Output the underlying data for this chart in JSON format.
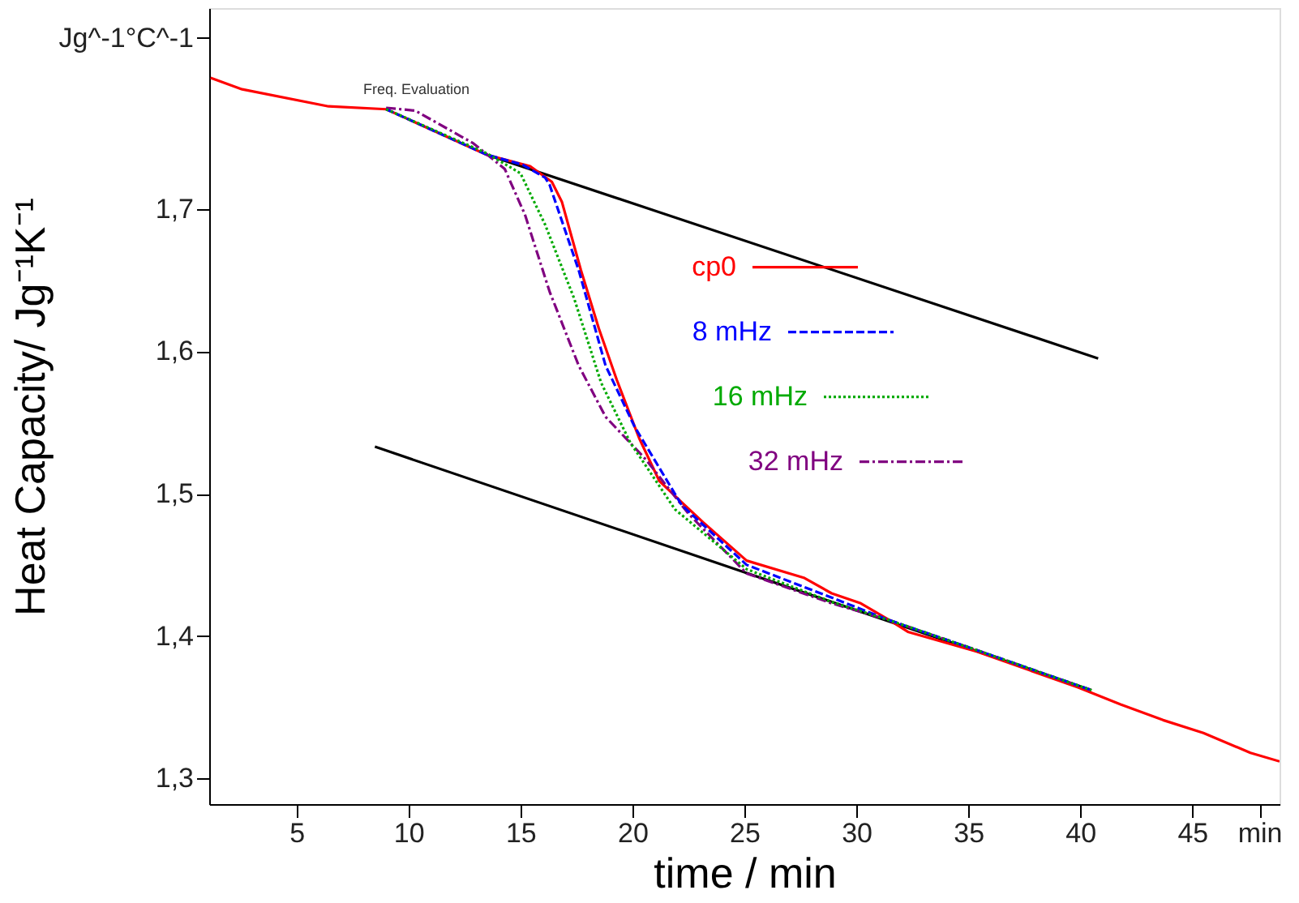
{
  "chart_data": {
    "type": "line",
    "xlabel": "time / min",
    "ylabel": "Heat Capacity/ Jg⁻¹K⁻¹",
    "xlim": [
      1.1,
      48.9
    ],
    "ylim": [
      1.282,
      1.841
    ],
    "xticks": [
      5,
      10,
      15,
      20,
      25,
      30,
      35,
      40,
      45,
      {
        "value": 48,
        "label": "min"
      }
    ],
    "yticks": [
      {
        "value": 1.3,
        "label": "1,3"
      },
      {
        "value": 1.4,
        "label": "1,4"
      },
      {
        "value": 1.5,
        "label": "1,5"
      },
      {
        "value": 1.6,
        "label": "1,6"
      },
      {
        "value": 1.7,
        "label": "1,7"
      },
      {
        "value": 1.82,
        "label": "Jg^-1°C^-1"
      }
    ],
    "grid": false,
    "legend": "center",
    "annotations": [
      "Freq. Evaluation"
    ],
    "series": [
      {
        "name": "cp0",
        "color": "#ff0000",
        "line_style": "solid",
        "x": [
          1.16,
          2.57,
          6.43,
          9.0,
          13.5,
          15.43,
          16.4,
          16.85,
          17.7,
          18.5,
          19.3,
          20.3,
          21.2,
          22.2,
          23.15,
          25.1,
          27.65,
          28.9,
          30.2,
          31.5,
          32.3,
          35.4,
          39.9,
          41.8,
          43.7,
          45.5,
          47.6,
          48.9
        ],
        "values": [
          1.792,
          1.784,
          1.772,
          1.77,
          1.738,
          1.73,
          1.719,
          1.705,
          1.657,
          1.616,
          1.58,
          1.539,
          1.509,
          1.494,
          1.48,
          1.453,
          1.441,
          1.43,
          1.423,
          1.411,
          1.403,
          1.389,
          1.364,
          1.352,
          1.341,
          1.332,
          1.318,
          1.312
        ]
      },
      {
        "name": "8 mHz",
        "color": "#0000ff",
        "line_style": "dashed",
        "x": [
          9.0,
          13.5,
          15.1,
          16.1,
          16.3,
          17.6,
          18.8,
          20.1,
          22.2,
          25.1,
          28.9,
          31.5,
          35.4,
          40.5
        ],
        "values": [
          1.77,
          1.738,
          1.731,
          1.722,
          1.717,
          1.657,
          1.59,
          1.547,
          1.492,
          1.45,
          1.427,
          1.411,
          1.39,
          1.362
        ]
      },
      {
        "name": "16 mHz",
        "color": "#00aa00",
        "line_style": "dotted",
        "x": [
          9.0,
          13.5,
          15.0,
          16.1,
          17.4,
          18.6,
          19.9,
          21.9,
          25.1,
          28.9,
          31.5,
          35.4,
          40.5
        ],
        "values": [
          1.77,
          1.739,
          1.725,
          1.689,
          1.637,
          1.578,
          1.536,
          1.489,
          1.447,
          1.424,
          1.411,
          1.39,
          1.362
        ]
      },
      {
        "name": "32 mHz",
        "color": "#800080",
        "line_style": "dashdot",
        "x": [
          9.0,
          10.3,
          12.9,
          14.3,
          15.2,
          16.3,
          17.6,
          18.8,
          20.6,
          22.5,
          25.1,
          28.9,
          31.5,
          35.4,
          40.5
        ],
        "values": [
          1.771,
          1.769,
          1.746,
          1.728,
          1.696,
          1.642,
          1.59,
          1.554,
          1.524,
          1.486,
          1.444,
          1.423,
          1.411,
          1.39,
          1.362
        ]
      },
      {
        "color": "#000000",
        "line_style": "solid",
        "x": [
          13.5,
          40.8
        ],
        "values": [
          1.738,
          1.595
        ]
      },
      {
        "color": "#000000",
        "line_style": "solid",
        "x": [
          8.5,
          40.5
        ],
        "values": [
          1.533,
          1.362
        ]
      }
    ]
  }
}
